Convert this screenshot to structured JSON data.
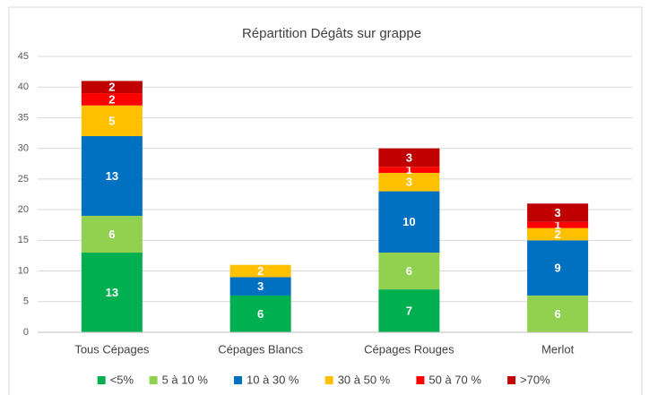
{
  "chart_data": {
    "type": "stacked_bar",
    "title": "Répartition Dégâts sur grappe",
    "categories": [
      "Tous Cépages",
      "Cépages Blancs",
      "Cépages Rouges",
      "Merlot"
    ],
    "series": [
      {
        "name": "<5%",
        "color": "#00b050",
        "values": [
          13,
          6,
          7,
          null
        ]
      },
      {
        "name": "5 à 10 %",
        "color": "#92d050",
        "values": [
          6,
          null,
          6,
          6
        ]
      },
      {
        "name": "10 à 30 %",
        "color": "#0070c0",
        "values": [
          13,
          3,
          10,
          9
        ]
      },
      {
        "name": "30 à 50 %",
        "color": "#ffc000",
        "values": [
          5,
          2,
          3,
          2
        ]
      },
      {
        "name": "50 à 70 %",
        "color": "#ff0000",
        "values": [
          2,
          null,
          1,
          1
        ]
      },
      {
        "name": ">70%",
        "color": "#c00000",
        "values": [
          2,
          null,
          3,
          3
        ]
      }
    ],
    "ylim": [
      0,
      45
    ],
    "yticks": [
      0,
      5,
      10,
      15,
      20,
      25,
      30,
      35,
      40,
      45
    ],
    "grid": true
  }
}
